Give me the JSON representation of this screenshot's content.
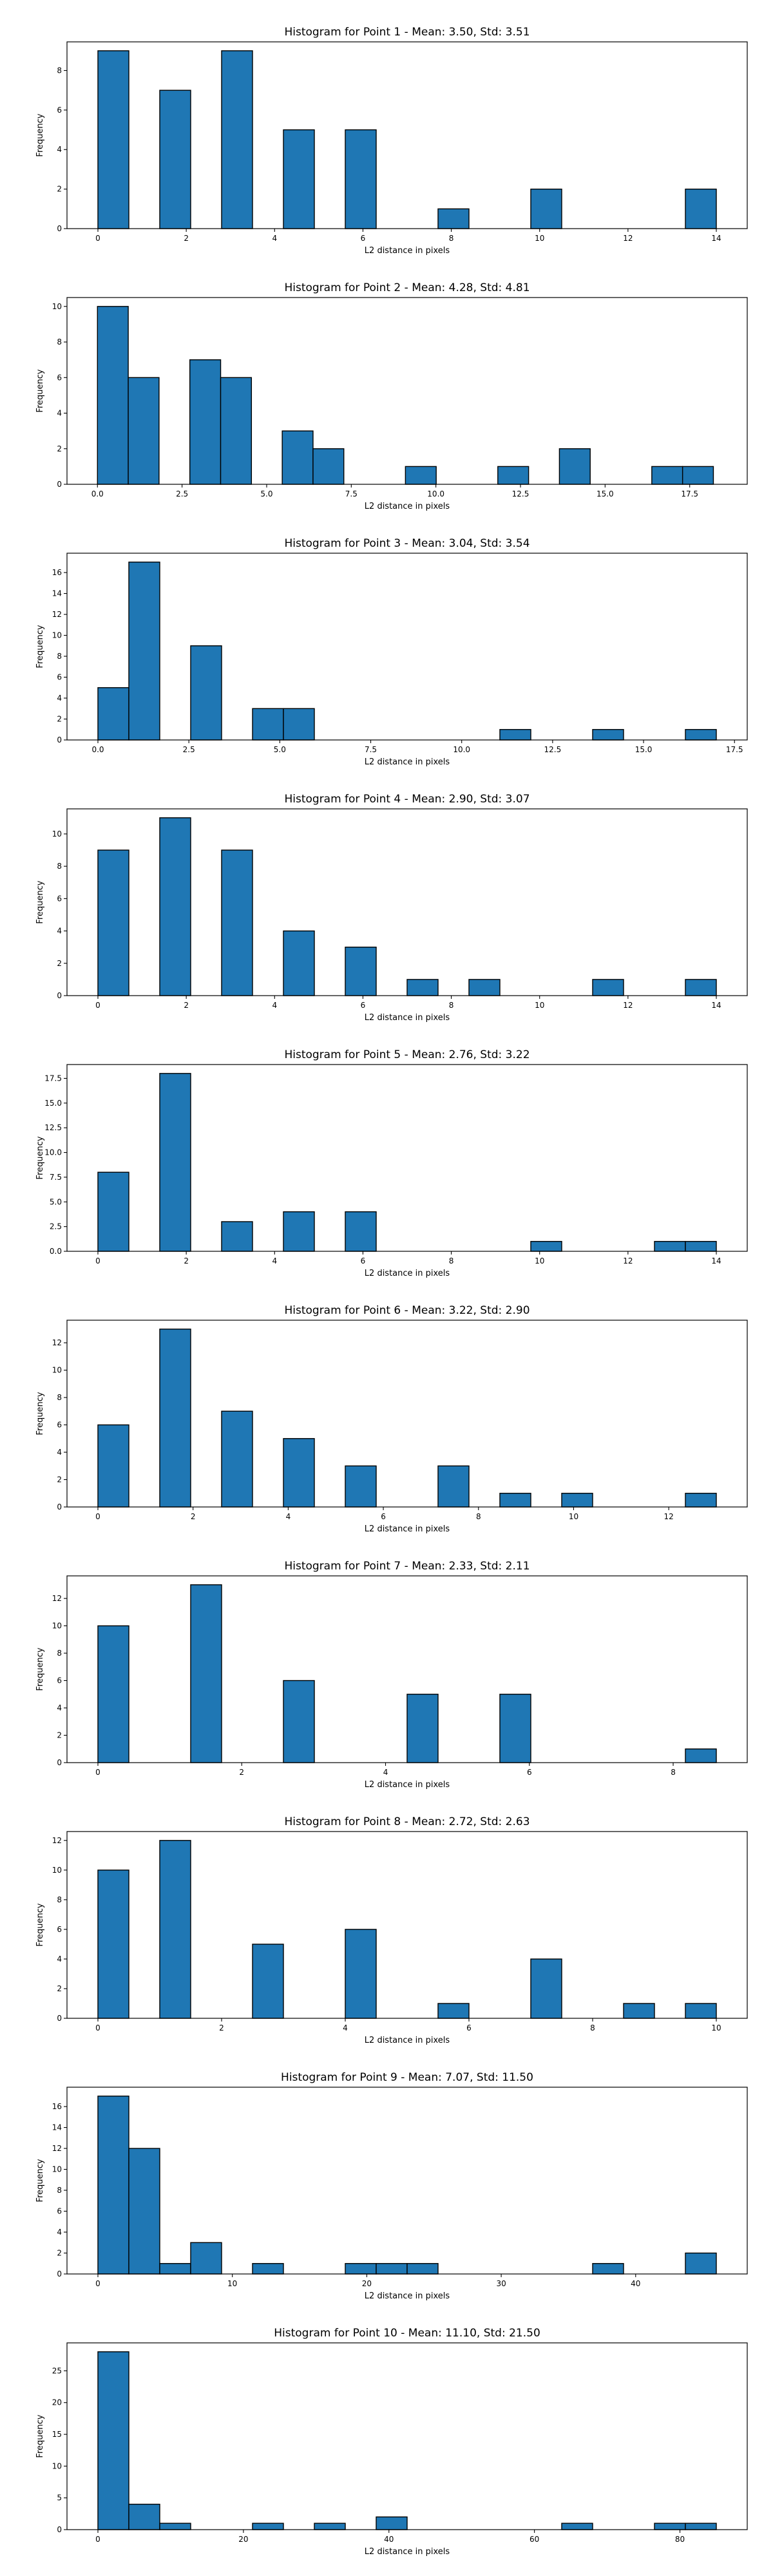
{
  "chart_data": [
    {
      "type": "bar",
      "title": "Histogram for Point 1 - Mean: 3.50, Std: 3.51",
      "xlabel": "L2 distance in pixels",
      "ylabel": "Frequency",
      "xlim": [
        -0.7,
        14.7
      ],
      "ylim": [
        0,
        9.45
      ],
      "xticks": [
        0,
        2,
        4,
        6,
        8,
        10,
        12,
        14
      ],
      "xtick_labels": [
        "0",
        "2",
        "4",
        "6",
        "8",
        "10",
        "12",
        "14"
      ],
      "yticks": [
        0,
        2,
        4,
        6,
        8
      ],
      "ytick_labels": [
        "0",
        "2",
        "4",
        "6",
        "8"
      ],
      "bin_edges": [
        0,
        0.7,
        1.4,
        2.1,
        2.8,
        3.5,
        4.2,
        4.9,
        5.6,
        6.3,
        7.0,
        7.7,
        8.4,
        9.1,
        9.8,
        10.5,
        11.2,
        11.9,
        12.6,
        13.3,
        14.0
      ],
      "values": [
        9,
        0,
        7,
        0,
        9,
        0,
        5,
        0,
        5,
        0,
        0,
        1,
        0,
        0,
        2,
        0,
        0,
        0,
        0,
        2
      ]
    },
    {
      "type": "bar",
      "title": "Histogram for Point 2 - Mean: 4.28, Std: 4.81",
      "xlabel": "L2 distance in pixels",
      "ylabel": "Frequency",
      "xlim": [
        -0.9,
        19.2
      ],
      "ylim": [
        0,
        10.5
      ],
      "xticks": [
        0,
        2.5,
        5,
        7.5,
        10,
        12.5,
        15,
        17.5
      ],
      "xtick_labels": [
        "0.0",
        "2.5",
        "5.0",
        "7.5",
        "10.0",
        "12.5",
        "15.0",
        "17.5"
      ],
      "yticks": [
        0,
        2,
        4,
        6,
        8,
        10
      ],
      "ytick_labels": [
        "0",
        "2",
        "4",
        "6",
        "8",
        "10"
      ],
      "bin_edges": [
        0,
        0.91,
        1.82,
        2.73,
        3.64,
        4.55,
        5.46,
        6.37,
        7.28,
        8.19,
        9.1,
        10.01,
        10.92,
        11.83,
        12.74,
        13.65,
        14.56,
        15.47,
        16.38,
        17.29,
        18.2
      ],
      "values": [
        10,
        6,
        0,
        7,
        6,
        0,
        3,
        2,
        0,
        0,
        1,
        0,
        0,
        1,
        0,
        2,
        0,
        0,
        1,
        1
      ]
    },
    {
      "type": "bar",
      "title": "Histogram for Point 3 - Mean: 3.04, Std: 3.54",
      "xlabel": "L2 distance in pixels",
      "ylabel": "Frequency",
      "xlim": [
        -0.85,
        17.85
      ],
      "ylim": [
        0,
        17.85
      ],
      "xticks": [
        0,
        2.5,
        5,
        7.5,
        10,
        12.5,
        15,
        17.5
      ],
      "xtick_labels": [
        "0.0",
        "2.5",
        "5.0",
        "7.5",
        "10.0",
        "12.5",
        "15.0",
        "17.5"
      ],
      "yticks": [
        0,
        2,
        4,
        6,
        8,
        10,
        12,
        14,
        16
      ],
      "ytick_labels": [
        "0",
        "2",
        "4",
        "6",
        "8",
        "10",
        "12",
        "14",
        "16"
      ],
      "bin_edges": [
        0,
        0.85,
        1.7,
        2.55,
        3.4,
        4.25,
        5.1,
        5.95,
        6.8,
        7.65,
        8.5,
        9.35,
        10.2,
        11.05,
        11.9,
        12.75,
        13.6,
        14.45,
        15.3,
        16.15,
        17.0
      ],
      "values": [
        5,
        17,
        0,
        9,
        0,
        3,
        3,
        0,
        0,
        0,
        0,
        0,
        0,
        1,
        0,
        0,
        1,
        0,
        0,
        1
      ]
    },
    {
      "type": "bar",
      "title": "Histogram for Point 4 - Mean: 2.90, Std: 3.07",
      "xlabel": "L2 distance in pixels",
      "ylabel": "Frequency",
      "xlim": [
        -0.7,
        14.7
      ],
      "ylim": [
        0,
        11.55
      ],
      "xticks": [
        0,
        2,
        4,
        6,
        8,
        10,
        12,
        14
      ],
      "xtick_labels": [
        "0",
        "2",
        "4",
        "6",
        "8",
        "10",
        "12",
        "14"
      ],
      "yticks": [
        0,
        2,
        4,
        6,
        8,
        10
      ],
      "ytick_labels": [
        "0",
        "2",
        "4",
        "6",
        "8",
        "10"
      ],
      "bin_edges": [
        0,
        0.7,
        1.4,
        2.1,
        2.8,
        3.5,
        4.2,
        4.9,
        5.6,
        6.3,
        7.0,
        7.7,
        8.4,
        9.1,
        9.8,
        10.5,
        11.2,
        11.9,
        12.6,
        13.3,
        14.0
      ],
      "values": [
        9,
        0,
        11,
        0,
        9,
        0,
        4,
        0,
        3,
        0,
        1,
        0,
        1,
        0,
        0,
        0,
        1,
        0,
        0,
        1
      ]
    },
    {
      "type": "bar",
      "title": "Histogram for Point 5 - Mean: 2.76, Std: 3.22",
      "xlabel": "L2 distance in pixels",
      "ylabel": "Frequency",
      "xlim": [
        -0.7,
        14.7
      ],
      "ylim": [
        0,
        18.9
      ],
      "xticks": [
        0,
        2,
        4,
        6,
        8,
        10,
        12,
        14
      ],
      "xtick_labels": [
        "0",
        "2",
        "4",
        "6",
        "8",
        "10",
        "12",
        "14"
      ],
      "yticks": [
        0,
        2.5,
        5,
        7.5,
        10,
        12.5,
        15,
        17.5
      ],
      "ytick_labels": [
        "0.0",
        "2.5",
        "5.0",
        "7.5",
        "10.0",
        "12.5",
        "15.0",
        "17.5"
      ],
      "bin_edges": [
        0,
        0.7,
        1.4,
        2.1,
        2.8,
        3.5,
        4.2,
        4.9,
        5.6,
        6.3,
        7.0,
        7.7,
        8.4,
        9.1,
        9.8,
        10.5,
        11.2,
        11.9,
        12.6,
        13.3,
        14.0
      ],
      "values": [
        8,
        0,
        18,
        0,
        3,
        0,
        4,
        0,
        4,
        0,
        0,
        0,
        0,
        0,
        1,
        0,
        0,
        0,
        1,
        1
      ]
    },
    {
      "type": "bar",
      "title": "Histogram for Point 6 - Mean: 3.22, Std: 2.90",
      "xlabel": "L2 distance in pixels",
      "ylabel": "Frequency",
      "xlim": [
        -0.65,
        13.65
      ],
      "ylim": [
        0,
        13.65
      ],
      "xticks": [
        0,
        2,
        4,
        6,
        8,
        10,
        12
      ],
      "xtick_labels": [
        "0",
        "2",
        "4",
        "6",
        "8",
        "10",
        "12"
      ],
      "yticks": [
        0,
        2,
        4,
        6,
        8,
        10,
        12
      ],
      "ytick_labels": [
        "0",
        "2",
        "4",
        "6",
        "8",
        "10",
        "12"
      ],
      "bin_edges": [
        0,
        0.65,
        1.3,
        1.95,
        2.6,
        3.25,
        3.9,
        4.55,
        5.2,
        5.85,
        6.5,
        7.15,
        7.8,
        8.45,
        9.1,
        9.75,
        10.4,
        11.05,
        11.7,
        12.35,
        13.0
      ],
      "values": [
        6,
        0,
        13,
        0,
        7,
        0,
        5,
        0,
        3,
        0,
        0,
        3,
        0,
        1,
        0,
        1,
        0,
        0,
        0,
        1
      ]
    },
    {
      "type": "bar",
      "title": "Histogram for Point 7 - Mean: 2.33, Std: 2.11",
      "xlabel": "L2 distance in pixels",
      "ylabel": "Frequency",
      "xlim": [
        -0.43,
        9.03
      ],
      "ylim": [
        0,
        13.65
      ],
      "xticks": [
        0,
        2,
        4,
        6,
        8
      ],
      "xtick_labels": [
        "0",
        "2",
        "4",
        "6",
        "8"
      ],
      "yticks": [
        0,
        2,
        4,
        6,
        8,
        10,
        12
      ],
      "ytick_labels": [
        "0",
        "2",
        "4",
        "6",
        "8",
        "10",
        "12"
      ],
      "bin_edges": [
        0,
        0.43,
        0.86,
        1.29,
        1.72,
        2.15,
        2.58,
        3.01,
        3.44,
        3.87,
        4.3,
        4.73,
        5.16,
        5.59,
        6.02,
        6.45,
        6.88,
        7.31,
        7.74,
        8.17,
        8.6
      ],
      "values": [
        10,
        0,
        0,
        13,
        0,
        0,
        6,
        0,
        0,
        0,
        5,
        0,
        0,
        5,
        0,
        0,
        0,
        0,
        0,
        1
      ]
    },
    {
      "type": "bar",
      "title": "Histogram for Point 8 - Mean: 2.72, Std: 2.63",
      "xlabel": "L2 distance in pixels",
      "ylabel": "Frequency",
      "xlim": [
        -0.5,
        10.5
      ],
      "ylim": [
        0,
        12.6
      ],
      "xticks": [
        0,
        2,
        4,
        6,
        8,
        10
      ],
      "xtick_labels": [
        "0",
        "2",
        "4",
        "6",
        "8",
        "10"
      ],
      "yticks": [
        0,
        2,
        4,
        6,
        8,
        10,
        12
      ],
      "ytick_labels": [
        "0",
        "2",
        "4",
        "6",
        "8",
        "10",
        "12"
      ],
      "bin_edges": [
        0,
        0.5,
        1.0,
        1.5,
        2.0,
        2.5,
        3.0,
        3.5,
        4.0,
        4.5,
        5.0,
        5.5,
        6.0,
        6.5,
        7.0,
        7.5,
        8.0,
        8.5,
        9.0,
        9.5,
        10.0
      ],
      "values": [
        10,
        0,
        12,
        0,
        0,
        5,
        0,
        0,
        6,
        0,
        0,
        1,
        0,
        0,
        4,
        0,
        0,
        1,
        0,
        1
      ]
    },
    {
      "type": "bar",
      "title": "Histogram for Point 9 - Mean: 7.07, Std: 11.50",
      "xlabel": "L2 distance in pixels",
      "ylabel": "Frequency",
      "xlim": [
        -2.3,
        48.3
      ],
      "ylim": [
        0,
        17.85
      ],
      "xticks": [
        0,
        10,
        20,
        30,
        40
      ],
      "xtick_labels": [
        "0",
        "10",
        "20",
        "30",
        "40"
      ],
      "yticks": [
        0,
        2,
        4,
        6,
        8,
        10,
        12,
        14,
        16
      ],
      "ytick_labels": [
        "0",
        "2",
        "4",
        "6",
        "8",
        "10",
        "12",
        "14",
        "16"
      ],
      "bin_edges": [
        0,
        2.3,
        4.6,
        6.9,
        9.2,
        11.5,
        13.8,
        16.1,
        18.4,
        20.7,
        23.0,
        25.3,
        27.6,
        29.9,
        32.2,
        34.5,
        36.8,
        39.1,
        41.4,
        43.7,
        46.0
      ],
      "values": [
        17,
        12,
        1,
        3,
        0,
        1,
        0,
        0,
        1,
        1,
        1,
        0,
        0,
        0,
        0,
        0,
        1,
        0,
        0,
        2
      ]
    },
    {
      "type": "bar",
      "title": "Histogram for Point 10 - Mean: 11.10, Std: 21.50",
      "xlabel": "L2 distance in pixels",
      "ylabel": "Frequency",
      "xlim": [
        -4.25,
        89.25
      ],
      "ylim": [
        0,
        29.4
      ],
      "xticks": [
        0,
        20,
        40,
        60,
        80
      ],
      "xtick_labels": [
        "0",
        "20",
        "40",
        "60",
        "80"
      ],
      "yticks": [
        0,
        5,
        10,
        15,
        20,
        25
      ],
      "ytick_labels": [
        "0",
        "5",
        "10",
        "15",
        "20",
        "25"
      ],
      "bin_edges": [
        0,
        4.25,
        8.5,
        12.75,
        17.0,
        21.25,
        25.5,
        29.75,
        34.0,
        38.25,
        42.5,
        46.75,
        51.0,
        55.25,
        59.5,
        63.75,
        68.0,
        72.25,
        76.5,
        80.75,
        85.0
      ],
      "values": [
        28,
        4,
        1,
        0,
        0,
        1,
        0,
        1,
        0,
        2,
        0,
        0,
        0,
        0,
        0,
        1,
        0,
        0,
        1,
        1
      ]
    }
  ]
}
